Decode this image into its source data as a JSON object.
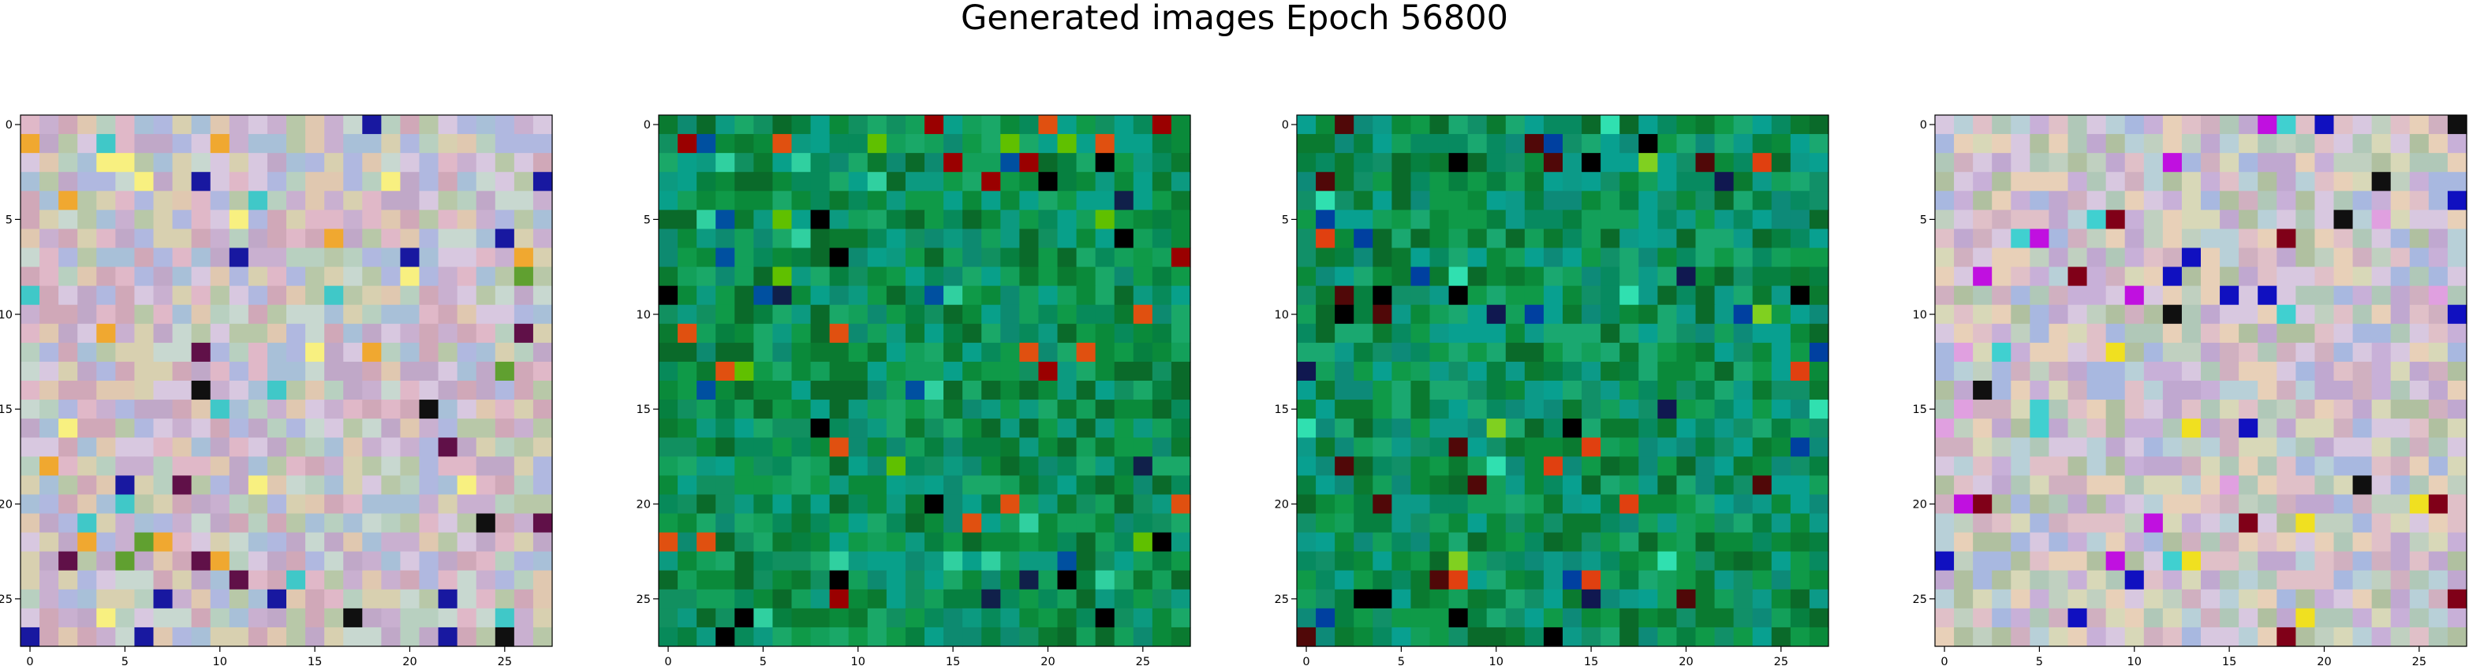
{
  "title": "Generated images Epoch 56800",
  "chart_data": [
    {
      "type": "heatmap",
      "title": "",
      "grid_size": [
        28,
        28
      ],
      "xlim": [
        -0.5,
        27.5
      ],
      "ylim": [
        27.5,
        -0.5
      ],
      "xticks": [
        0,
        5,
        10,
        15,
        20,
        25
      ],
      "yticks": [
        0,
        5,
        10,
        15,
        20,
        25
      ],
      "palette": [
        "#c9b0d0",
        "#d8c8e0",
        "#b8d0c0",
        "#e0b8c8",
        "#a8c0d8",
        "#d8d0b0",
        "#c0a8c8",
        "#b0b8e0",
        "#e0c8b0",
        "#c8d8d0",
        "#d0a8b8",
        "#b8c8a8"
      ],
      "highlights": [
        "#f8f080",
        "#1818a0",
        "#101010",
        "#40c8c8",
        "#f0a830",
        "#601048",
        "#60a030"
      ],
      "seed": 11
    },
    {
      "type": "heatmap",
      "title": "",
      "grid_size": [
        28,
        28
      ],
      "xlim": [
        -0.5,
        27.5
      ],
      "ylim": [
        27.5,
        -0.5
      ],
      "xticks": [
        0,
        5,
        10,
        15,
        20,
        25
      ],
      "yticks": [
        0,
        5,
        10,
        15,
        20,
        25
      ],
      "palette": [
        "#0a8a3a",
        "#0f9a48",
        "#068040",
        "#13a05a",
        "#0a7a30",
        "#119060",
        "#0d8a70",
        "#08a08a",
        "#0c9a80",
        "#0a6a2a",
        "#1aa868",
        "#078a5a"
      ],
      "highlights": [
        "#000000",
        "#10204a",
        "#9a0000",
        "#e05010",
        "#0050a0",
        "#30d0a0",
        "#60c000"
      ],
      "seed": 23
    },
    {
      "type": "heatmap",
      "title": "",
      "grid_size": [
        28,
        28
      ],
      "xlim": [
        -0.5,
        27.5
      ],
      "ylim": [
        27.5,
        -0.5
      ],
      "xticks": [
        0,
        5,
        10,
        15,
        20,
        25
      ],
      "yticks": [
        0,
        5,
        10,
        15,
        20,
        25
      ],
      "palette": [
        "#0a8a3a",
        "#0f9a48",
        "#068040",
        "#13a05a",
        "#0a7a30",
        "#119068",
        "#0d8a78",
        "#08a090",
        "#0c9a88",
        "#0a6a2a",
        "#1aa870",
        "#078a60"
      ],
      "highlights": [
        "#000000",
        "#101850",
        "#500808",
        "#e04010",
        "#0040a0",
        "#30e0b0",
        "#80d020"
      ],
      "seed": 37
    },
    {
      "type": "heatmap",
      "title": "",
      "grid_size": [
        28,
        28
      ],
      "xlim": [
        -0.5,
        27.5
      ],
      "ylim": [
        27.5,
        -0.5
      ],
      "xticks": [
        0,
        5,
        10,
        15,
        20,
        25
      ],
      "yticks": [
        0,
        5,
        10,
        15,
        20,
        25
      ],
      "palette": [
        "#c8b0d8",
        "#d8c8e0",
        "#b0c8b8",
        "#e0c0c8",
        "#a8b8e0",
        "#d8d8b8",
        "#c0a8d0",
        "#b8d0d8",
        "#e8d0b8",
        "#c0d0c0",
        "#d0b0c0",
        "#b0c0a0"
      ],
      "highlights": [
        "#f0e020",
        "#1010c0",
        "#101010",
        "#c010e0",
        "#800018",
        "#40d0d0",
        "#e0a0e0"
      ],
      "seed": 53
    }
  ]
}
